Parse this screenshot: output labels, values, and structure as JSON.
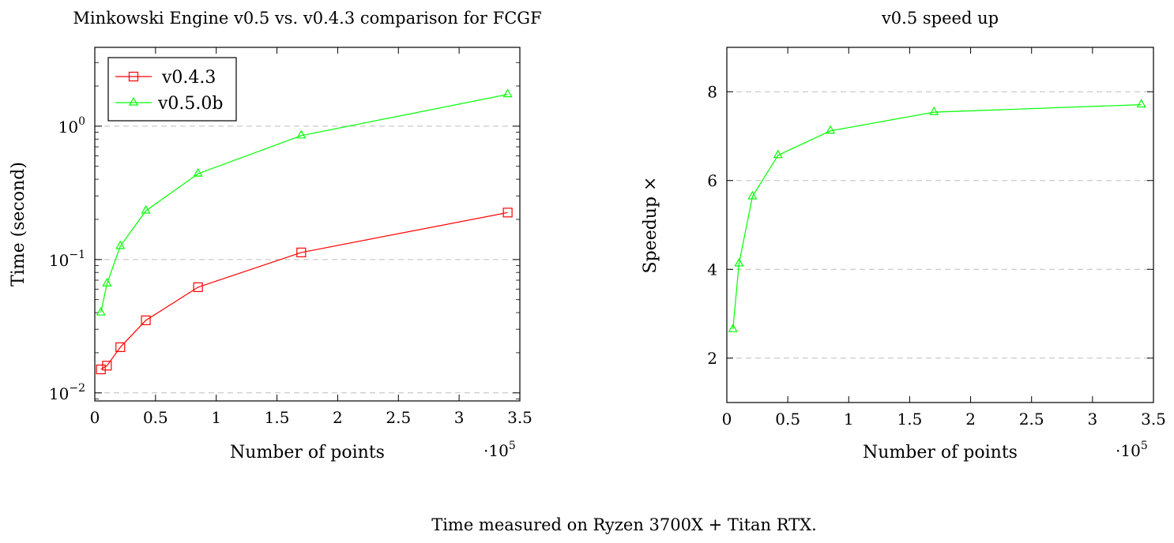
{
  "caption": "Time measured on Ryzen 3700X + Titan RTX.",
  "chart_data": [
    {
      "type": "line",
      "title": "Minkowski Engine v0.5 vs. v0.4.3 comparison for FCGF",
      "xlabel": "Number of points",
      "ylabel": "Time (second)",
      "x_multiplier_label": "·10",
      "x_multiplier_exponent": "5",
      "yscale": "log",
      "xlim": [
        0,
        3.5
      ],
      "ylim": [
        0.0087,
        3.9
      ],
      "x_ticks": [
        0,
        0.5,
        1,
        1.5,
        2,
        2.5,
        3,
        3.5
      ],
      "x_tick_labels": [
        "0",
        "0.5",
        "1",
        "1.5",
        "2",
        "2.5",
        "3",
        "3.5"
      ],
      "y_ticks": [
        0.01,
        0.1,
        1
      ],
      "y_tick_base": "10",
      "y_tick_exponents": [
        "−2",
        "−1",
        "0"
      ],
      "legend_position": "top-left",
      "series": [
        {
          "name": "v0.4.3",
          "color": "#ff0000",
          "marker": "square",
          "x": [
            0.05,
            0.1,
            0.21,
            0.42,
            0.85,
            1.7,
            3.4
          ],
          "y": [
            0.015,
            0.016,
            0.022,
            0.035,
            0.062,
            0.113,
            0.225
          ]
        },
        {
          "name": "v0.5.0b",
          "color": "#00ff00",
          "marker": "triangle",
          "x": [
            0.05,
            0.1,
            0.21,
            0.42,
            0.85,
            1.7,
            3.4
          ],
          "y": [
            0.04,
            0.066,
            0.126,
            0.232,
            0.44,
            0.85,
            1.73
          ]
        }
      ]
    },
    {
      "type": "line",
      "title": "v0.5 speed up",
      "xlabel": "Number of points",
      "ylabel": "Speedup ×",
      "x_multiplier_label": "·10",
      "x_multiplier_exponent": "5",
      "xlim": [
        0,
        3.5
      ],
      "ylim": [
        1,
        9
      ],
      "x_ticks": [
        0,
        0.5,
        1,
        1.5,
        2,
        2.5,
        3,
        3.5
      ],
      "x_tick_labels": [
        "0",
        "0.5",
        "1",
        "1.5",
        "2",
        "2.5",
        "3",
        "3.5"
      ],
      "y_ticks": [
        2,
        4,
        6,
        8
      ],
      "y_tick_labels": [
        "2",
        "4",
        "6",
        "8"
      ],
      "series": [
        {
          "name": "speedup",
          "color": "#00ff00",
          "marker": "triangle",
          "x": [
            0.05,
            0.1,
            0.21,
            0.42,
            0.85,
            1.7,
            3.4
          ],
          "y": [
            2.65,
            4.13,
            5.64,
            6.57,
            7.12,
            7.54,
            7.71
          ]
        }
      ]
    }
  ]
}
